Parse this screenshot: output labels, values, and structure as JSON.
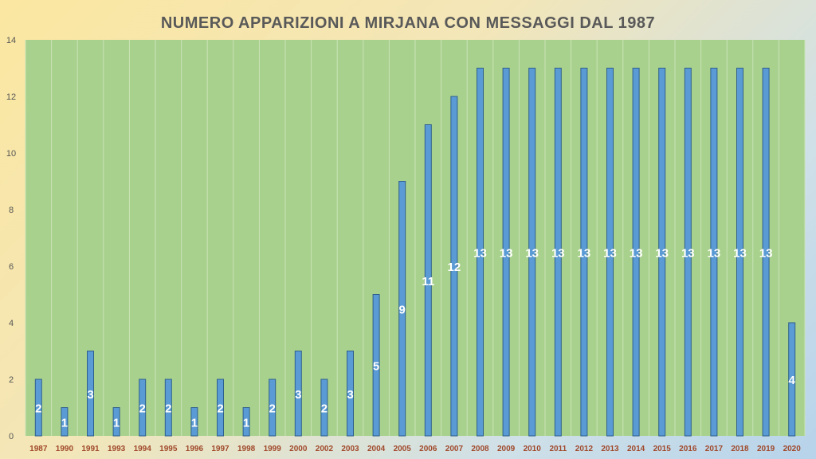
{
  "chart_data": {
    "type": "bar",
    "title": "NUMERO APPARIZIONI A MIRJANA CON MESSAGGI DAL 1987",
    "xlabel": "",
    "ylabel": "",
    "ylim": [
      0,
      14
    ],
    "yticks": [
      0,
      2,
      4,
      6,
      8,
      10,
      12,
      14
    ],
    "grid": "vertical",
    "legend": "none",
    "categories": [
      "1987",
      "1990",
      "1991",
      "1993",
      "1994",
      "1995",
      "1996",
      "1997",
      "1998",
      "1999",
      "2000",
      "2002",
      "2003",
      "2004",
      "2005",
      "2006",
      "2007",
      "2008",
      "2009",
      "2010",
      "2011",
      "2012",
      "2013",
      "2014",
      "2015",
      "2016",
      "2017",
      "2018",
      "2019",
      "2020"
    ],
    "values": [
      2,
      1,
      3,
      1,
      2,
      2,
      1,
      2,
      1,
      2,
      3,
      2,
      3,
      5,
      9,
      11,
      12,
      13,
      13,
      13,
      13,
      13,
      13,
      13,
      13,
      13,
      13,
      13,
      13,
      4
    ],
    "colors": {
      "bar_fill": "#5b9bd5",
      "bar_stroke": "#2e5f8c",
      "plot_background": "#a9d18e",
      "gridline": "#c9e3b6",
      "data_label": "#ffffff",
      "x_tick": "#a0482a"
    }
  }
}
